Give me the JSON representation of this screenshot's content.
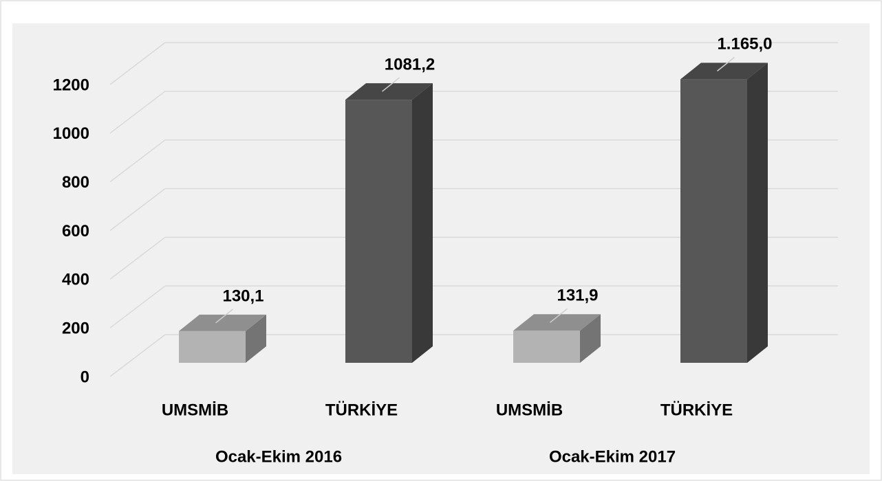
{
  "chart_data": {
    "type": "bar3d",
    "categories": [
      "UMSMİB",
      "TÜRKİYE",
      "UMSMİB",
      "TÜRKİYE"
    ],
    "groups": [
      "Ocak-Ekim 2016",
      "Ocak-Ekim 2017"
    ],
    "values": [
      130.1,
      1081.2,
      131.9,
      1165.0
    ],
    "value_labels": [
      "130,1",
      "1081,2",
      "131,9",
      "1.165,0"
    ],
    "colors": [
      "#b3b3b3",
      "#575757",
      "#b3b3b3",
      "#575757"
    ],
    "ylim": [
      0,
      1200
    ],
    "yticks": [
      0,
      200,
      400,
      600,
      800,
      1000,
      1200
    ],
    "grid": true
  }
}
